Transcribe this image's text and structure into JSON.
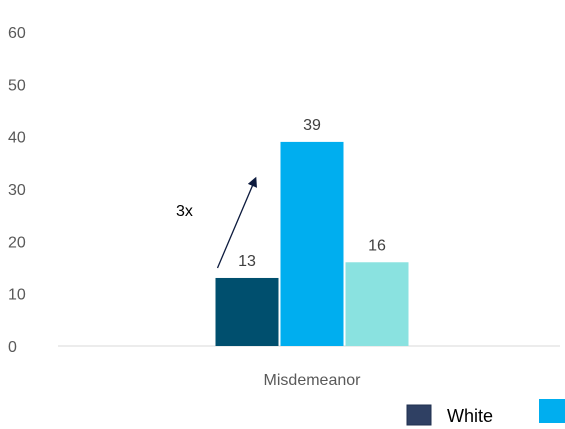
{
  "chart_data": {
    "type": "bar",
    "categories": [
      "Misdemeanor"
    ],
    "series": [
      {
        "name": "White",
        "values": [
          13
        ],
        "color": "#004f6e"
      },
      {
        "name": "",
        "values": [
          39
        ],
        "color": "#00aeef"
      },
      {
        "name": "",
        "values": [
          16
        ],
        "color": "#8ae2e0"
      }
    ],
    "ylim": [
      0,
      60
    ],
    "yticks": [
      0,
      10,
      20,
      30,
      40,
      50,
      60
    ],
    "grid": false,
    "legend_position": "bottom-right",
    "annotation": {
      "text": "3x",
      "arrow_from_series": 0,
      "arrow_to_series": 1
    }
  }
}
